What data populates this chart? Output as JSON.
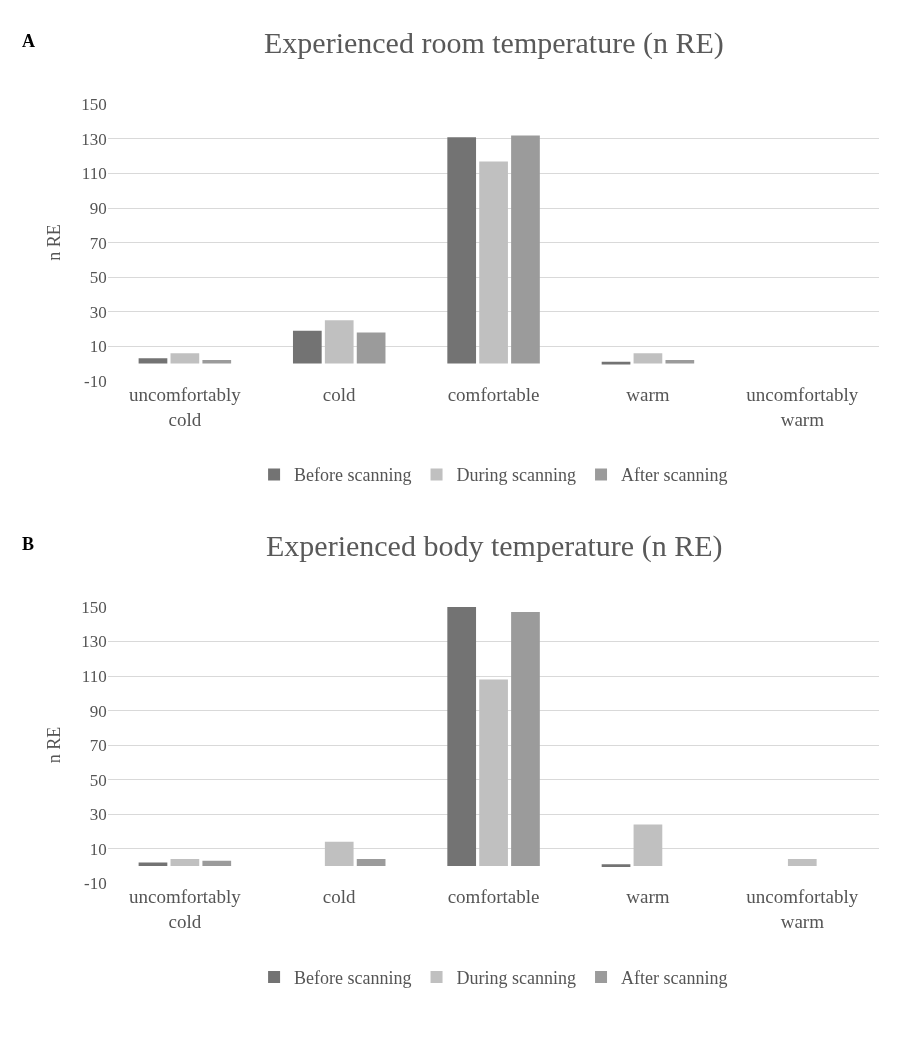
{
  "chart_data": [
    {
      "type": "bar",
      "title": "Experienced room temperature (n RE)",
      "ylabel": "n RE",
      "annotations": [
        "A"
      ],
      "categories": [
        "uncomfortably cold",
        "cold",
        "comfortable",
        "warm",
        "uncomfortably warm"
      ],
      "ylim": [
        -10,
        150
      ],
      "yticks": [
        -10,
        10,
        30,
        50,
        70,
        90,
        110,
        130,
        150
      ],
      "grid": "y",
      "legend": "bottom",
      "series": [
        {
          "name": "Before scanning",
          "color": "#737373",
          "values": [
            3,
            19,
            131,
            1,
            0
          ]
        },
        {
          "name": "During scanning",
          "color": "#c0c0c0",
          "values": [
            6,
            25,
            117,
            6,
            0
          ]
        },
        {
          "name": "After scanning",
          "color": "#9b9b9b",
          "values": [
            2,
            18,
            132,
            2,
            0
          ]
        }
      ]
    },
    {
      "type": "bar",
      "title": "Experienced body temperature (n RE)",
      "ylabel": "n RE",
      "annotations": [
        "B"
      ],
      "categories": [
        "uncomfortably cold",
        "cold",
        "comfortable",
        "warm",
        "uncomfortably warm"
      ],
      "ylim": [
        -10,
        150
      ],
      "yticks": [
        -10,
        10,
        30,
        50,
        70,
        90,
        110,
        130,
        150
      ],
      "grid": "y",
      "legend": "bottom",
      "series": [
        {
          "name": "Before scanning",
          "color": "#737373",
          "values": [
            2,
            0,
            150,
            1,
            0
          ]
        },
        {
          "name": "During scanning",
          "color": "#c0c0c0",
          "values": [
            4,
            14,
            108,
            24,
            4
          ]
        },
        {
          "name": "After scanning",
          "color": "#9b9b9b",
          "values": [
            3,
            4,
            147,
            0,
            0
          ]
        }
      ]
    }
  ]
}
